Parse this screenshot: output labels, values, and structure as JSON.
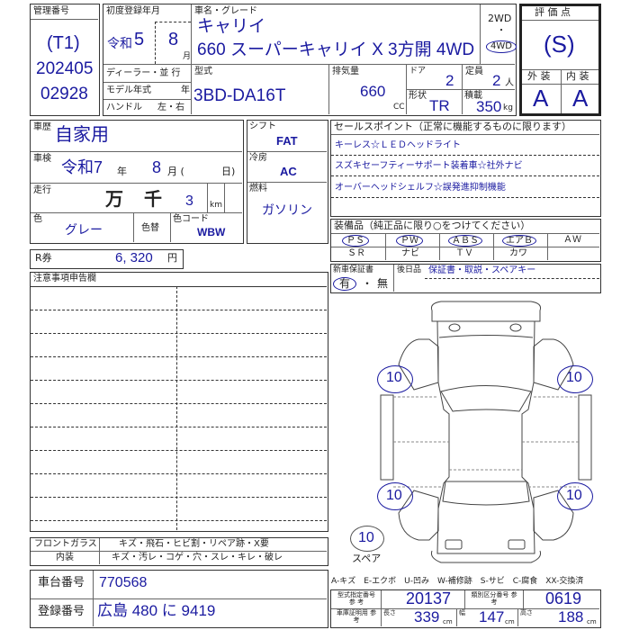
{
  "management": {
    "label": "管理番号",
    "code": "(T1)",
    "line1": "202405",
    "line2": "02928"
  },
  "registration": {
    "label": "初度登録年月",
    "era": "令和",
    "year": "5",
    "month": "8",
    "month_unit": "月",
    "dealer_label": "ディーラー・並 行",
    "model_year_label": "モデル年式",
    "model_year_unit": "年",
    "handle_label": "ハンドル",
    "handle_options": "左・右"
  },
  "vehicle": {
    "name_label": "車名・グレード",
    "name": "キャリイ",
    "grade": "660 スーパーキャリイ X 3方開 4WD",
    "drive_2wd": "2WD",
    "drive_dot": "・",
    "drive_4wd": "4WD",
    "drive_selected": "4WD",
    "type_label": "型式",
    "type": "3BD-DA16T",
    "displacement_label": "排気量",
    "displacement": "660",
    "displacement_unit": "CC",
    "doors_label": "ドア",
    "doors": "2",
    "capacity_label": "定員",
    "capacity": "2",
    "capacity_unit": "人",
    "shape_label": "形状",
    "shape": "TR",
    "load_label": "積載",
    "load": "350",
    "load_unit": "kg"
  },
  "evaluation": {
    "label": "評 価 点",
    "score": "(S)",
    "exterior_label": "外 装",
    "interior_label": "内 装",
    "exterior": "A",
    "interior": "A"
  },
  "history": {
    "label": "車歴",
    "value": "自家用"
  },
  "inspection": {
    "label": "車検",
    "era_year": "令和7",
    "year_unit": "年",
    "month": "8",
    "month_unit": "月 (",
    "day_unit": "日)"
  },
  "mileage": {
    "label": "走行",
    "man": "万",
    "sen": "千",
    "value": "3",
    "unit": "km"
  },
  "color": {
    "label": "色",
    "value": "グレー",
    "repaint_label": "色替",
    "code_label": "色コード",
    "code": "WBW"
  },
  "shift": {
    "label": "シフト",
    "value": "FAT"
  },
  "aircon": {
    "label": "冷房",
    "value": "AC"
  },
  "fuel": {
    "label": "燃料",
    "value": "ガソリン"
  },
  "recycle": {
    "label": "R券",
    "value": "6, 320",
    "unit": "円"
  },
  "notes": {
    "label": "注意事項申告欄"
  },
  "sale_points": {
    "label": "セールスポイント（正常に機能するものに限ります）",
    "items": [
      "キーレス☆ＬＥＤヘッドライト",
      "スズキセーフティーサポート装着車☆社外ナビ",
      "オーバーヘッドシェルフ☆誤発進抑制機能"
    ]
  },
  "equipment": {
    "label": "装備品（純正品に限り○をつけてください）",
    "row1": [
      "ＰＳ",
      "ＰＷ",
      "ＡＢＳ",
      "エアＢ",
      "ＡＷ"
    ],
    "row2": [
      "ＳＲ",
      "ナビ",
      "ＴＶ",
      "カワ",
      ""
    ],
    "circled": [
      "ＰＳ",
      "ＰＷ",
      "ＡＢＳ",
      "エアＢ"
    ]
  },
  "warranty": {
    "label": "新車保証書",
    "yes": "有",
    "sep": "・",
    "no": "無",
    "later_label": "後日品",
    "later": "保証書・取説・スペアキー"
  },
  "tires": {
    "front_left": "10",
    "front_right": "10",
    "rear_left": "10",
    "rear_right": "10",
    "spare": "10",
    "spare_label": "スペア"
  },
  "glass": {
    "label": "フロントガラス",
    "options": "キズ・飛石・ヒビ割・リペア跡・X要"
  },
  "interior_check": {
    "label": "内装",
    "options": "キズ・汚レ・コゲ・穴・スレ・キレ・破レ"
  },
  "chassis": {
    "label": "車台番号",
    "value": "770568"
  },
  "plate": {
    "label": "登録番号",
    "value": "広島 480 に 9419"
  },
  "legend": "A-キズ　E-エクボ　U-凹み　W-補修跡　S-サビ　C-腐食　XX-交換済",
  "ref": {
    "type_no_label": "型式指定番号 参 考",
    "type_no": "20137",
    "class_no_label": "類別区分番号 参 考",
    "class_no": "0619",
    "cert_label": "車庫証明用 参 考",
    "length_label": "長さ",
    "length": "339",
    "width_label": "幅",
    "width": "147",
    "height_label": "高さ",
    "height": "188",
    "unit": "cm"
  }
}
